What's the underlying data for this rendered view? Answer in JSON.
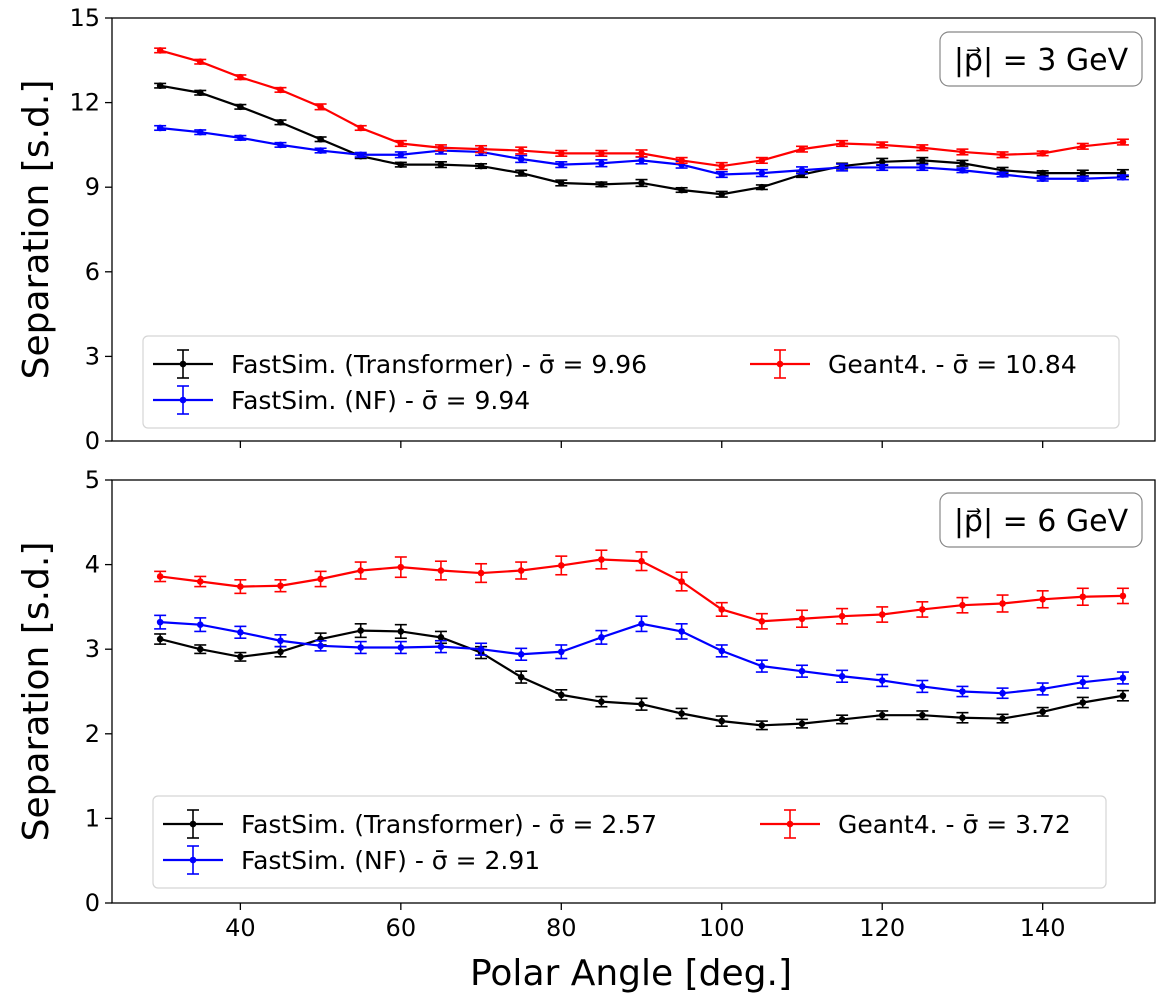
{
  "chart_data": [
    {
      "type": "line",
      "panel": "top",
      "annotation": "|p⃗| = 3 GeV",
      "xlabel": "",
      "ylabel": "Separation [s.d.]",
      "xlim": [
        24,
        154
      ],
      "ylim": [
        0,
        15
      ],
      "yticks": [
        0,
        3,
        6,
        9,
        12,
        15
      ],
      "xticks": [
        40,
        60,
        80,
        100,
        120,
        140
      ],
      "x": [
        30,
        35,
        40,
        45,
        50,
        55,
        60,
        65,
        70,
        75,
        80,
        85,
        90,
        95,
        100,
        105,
        110,
        115,
        120,
        125,
        130,
        135,
        140,
        145,
        150
      ],
      "legend_placement": "lower-center",
      "series": [
        {
          "name": "FastSim. (Transformer) - σ̄ = 9.96",
          "color": "#000000",
          "values": [
            12.6,
            12.35,
            11.85,
            11.3,
            10.7,
            10.1,
            9.8,
            9.8,
            9.75,
            9.5,
            9.15,
            9.1,
            9.15,
            8.9,
            8.75,
            9.0,
            9.45,
            9.75,
            9.9,
            9.95,
            9.85,
            9.6,
            9.5,
            9.5,
            9.5
          ],
          "errors": [
            0.08,
            0.08,
            0.08,
            0.08,
            0.08,
            0.08,
            0.08,
            0.1,
            0.08,
            0.1,
            0.1,
            0.08,
            0.12,
            0.08,
            0.1,
            0.08,
            0.1,
            0.1,
            0.12,
            0.1,
            0.1,
            0.1,
            0.08,
            0.1,
            0.12
          ]
        },
        {
          "name": "FastSim. (NF) - σ̄ = 9.94",
          "color": "#0000ff",
          "values": [
            11.1,
            10.95,
            10.75,
            10.5,
            10.3,
            10.15,
            10.15,
            10.3,
            10.25,
            10.0,
            9.8,
            9.85,
            9.95,
            9.8,
            9.45,
            9.5,
            9.6,
            9.7,
            9.7,
            9.7,
            9.6,
            9.45,
            9.3,
            9.3,
            9.35
          ],
          "errors": [
            0.08,
            0.08,
            0.08,
            0.08,
            0.08,
            0.08,
            0.1,
            0.12,
            0.12,
            0.12,
            0.1,
            0.12,
            0.12,
            0.12,
            0.1,
            0.12,
            0.12,
            0.12,
            0.1,
            0.1,
            0.08,
            0.08,
            0.08,
            0.08,
            0.08
          ]
        },
        {
          "name": "Geant4. - σ̄ = 10.84",
          "color": "#ff0000",
          "values": [
            13.85,
            13.45,
            12.9,
            12.45,
            11.85,
            11.1,
            10.55,
            10.4,
            10.35,
            10.3,
            10.2,
            10.2,
            10.2,
            9.95,
            9.75,
            9.95,
            10.35,
            10.55,
            10.5,
            10.4,
            10.25,
            10.15,
            10.2,
            10.45,
            10.6
          ],
          "errors": [
            0.08,
            0.08,
            0.08,
            0.08,
            0.1,
            0.08,
            0.1,
            0.1,
            0.12,
            0.12,
            0.1,
            0.1,
            0.12,
            0.1,
            0.12,
            0.1,
            0.1,
            0.1,
            0.1,
            0.1,
            0.1,
            0.1,
            0.08,
            0.1,
            0.1
          ]
        }
      ]
    },
    {
      "type": "line",
      "panel": "bottom",
      "annotation": "|p⃗| = 6 GeV",
      "xlabel": "Polar Angle [deg.]",
      "ylabel": "Separation [s.d.]",
      "xlim": [
        24,
        154
      ],
      "ylim": [
        0,
        5
      ],
      "yticks": [
        0,
        1,
        2,
        3,
        4,
        5
      ],
      "xticks": [
        40,
        60,
        80,
        100,
        120,
        140
      ],
      "x": [
        30,
        35,
        40,
        45,
        50,
        55,
        60,
        65,
        70,
        75,
        80,
        85,
        90,
        95,
        100,
        105,
        110,
        115,
        120,
        125,
        130,
        135,
        140,
        145,
        150
      ],
      "legend_placement": "lower-center",
      "series": [
        {
          "name": "FastSim. (Transformer) - σ̄ = 2.57",
          "color": "#000000",
          "values": [
            3.12,
            3.0,
            2.91,
            2.97,
            3.12,
            3.22,
            3.21,
            3.14,
            2.96,
            2.67,
            2.46,
            2.38,
            2.35,
            2.24,
            2.15,
            2.1,
            2.12,
            2.17,
            2.22,
            2.22,
            2.19,
            2.18,
            2.26,
            2.37,
            2.45
          ],
          "errors": [
            0.06,
            0.05,
            0.05,
            0.06,
            0.07,
            0.08,
            0.08,
            0.07,
            0.07,
            0.07,
            0.06,
            0.06,
            0.07,
            0.06,
            0.06,
            0.05,
            0.05,
            0.05,
            0.05,
            0.05,
            0.06,
            0.05,
            0.05,
            0.06,
            0.06
          ]
        },
        {
          "name": "FastSim. (NF) - σ̄ = 2.91",
          "color": "#0000ff",
          "values": [
            3.32,
            3.29,
            3.2,
            3.1,
            3.04,
            3.02,
            3.02,
            3.03,
            3.0,
            2.94,
            2.97,
            3.14,
            3.3,
            3.21,
            2.98,
            2.8,
            2.74,
            2.68,
            2.63,
            2.56,
            2.5,
            2.48,
            2.53,
            2.61,
            2.66
          ],
          "errors": [
            0.08,
            0.08,
            0.07,
            0.07,
            0.06,
            0.07,
            0.07,
            0.07,
            0.07,
            0.07,
            0.08,
            0.08,
            0.09,
            0.09,
            0.07,
            0.07,
            0.07,
            0.07,
            0.07,
            0.07,
            0.06,
            0.06,
            0.07,
            0.07,
            0.07
          ]
        },
        {
          "name": "Geant4. - σ̄ = 3.72",
          "color": "#ff0000",
          "values": [
            3.86,
            3.8,
            3.74,
            3.75,
            3.83,
            3.93,
            3.97,
            3.93,
            3.9,
            3.93,
            3.99,
            4.06,
            4.04,
            3.8,
            3.47,
            3.33,
            3.36,
            3.39,
            3.41,
            3.47,
            3.52,
            3.54,
            3.59,
            3.62,
            3.63
          ],
          "errors": [
            0.06,
            0.06,
            0.08,
            0.07,
            0.09,
            0.1,
            0.12,
            0.11,
            0.11,
            0.1,
            0.11,
            0.11,
            0.11,
            0.11,
            0.08,
            0.09,
            0.1,
            0.09,
            0.09,
            0.09,
            0.09,
            0.1,
            0.1,
            0.1,
            0.09
          ]
        }
      ]
    }
  ]
}
